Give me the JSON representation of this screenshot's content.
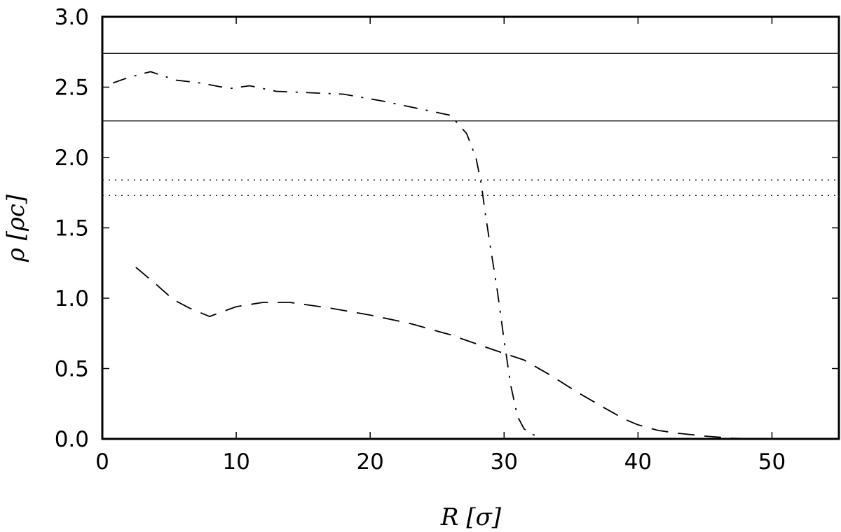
{
  "chart_data": {
    "type": "line",
    "xlabel": "R [σ]",
    "ylabel": "ρ [ρc]",
    "xlim": [
      0,
      55
    ],
    "ylim": [
      0,
      3.0
    ],
    "x_ticks": [
      0,
      10,
      20,
      30,
      40,
      50
    ],
    "y_ticks": [
      0.0,
      0.5,
      1.0,
      1.5,
      2.0,
      2.5,
      3.0
    ],
    "x_tick_labels": [
      "0",
      "10",
      "20",
      "30",
      "40",
      "50"
    ],
    "y_tick_labels": [
      "0.0",
      "0.5",
      "1.0",
      "1.5",
      "2.0",
      "2.5",
      "3.0"
    ],
    "grid": false,
    "legend": "none",
    "horizontal_lines": [
      {
        "y": 2.74,
        "style": "solid"
      },
      {
        "y": 2.26,
        "style": "solid"
      },
      {
        "y": 1.84,
        "style": "dotted"
      },
      {
        "y": 1.73,
        "style": "dotted"
      }
    ],
    "series": [
      {
        "style": "dashdot",
        "x": [
          0.8,
          2.0,
          3.6,
          5.5,
          7.3,
          9.5,
          11.0,
          13.0,
          15.5,
          18.0,
          21.0,
          24.0,
          26.0,
          27.2,
          27.9,
          28.3,
          28.6,
          29.0,
          29.5,
          30.0,
          30.5,
          31.0,
          31.5,
          32.0,
          32.6
        ],
        "y": [
          2.53,
          2.57,
          2.61,
          2.55,
          2.53,
          2.49,
          2.51,
          2.47,
          2.46,
          2.45,
          2.4,
          2.34,
          2.3,
          2.17,
          2.0,
          1.81,
          1.6,
          1.35,
          1.05,
          0.7,
          0.38,
          0.16,
          0.07,
          0.04,
          0.01
        ]
      },
      {
        "style": "dashed",
        "x": [
          2.5,
          4.0,
          5.3,
          6.5,
          8.0,
          10.0,
          12.0,
          14.0,
          17.0,
          20.0,
          23.0,
          26.0,
          29.0,
          31.5,
          33.5,
          35.5,
          37.5,
          39.0,
          40.0,
          41.5,
          43.0,
          45.0,
          47.0,
          49.0
        ],
        "y": [
          1.22,
          1.1,
          0.99,
          0.93,
          0.87,
          0.94,
          0.97,
          0.97,
          0.93,
          0.88,
          0.82,
          0.74,
          0.64,
          0.56,
          0.45,
          0.33,
          0.22,
          0.14,
          0.1,
          0.06,
          0.04,
          0.02,
          0.005,
          0.0
        ]
      }
    ]
  }
}
